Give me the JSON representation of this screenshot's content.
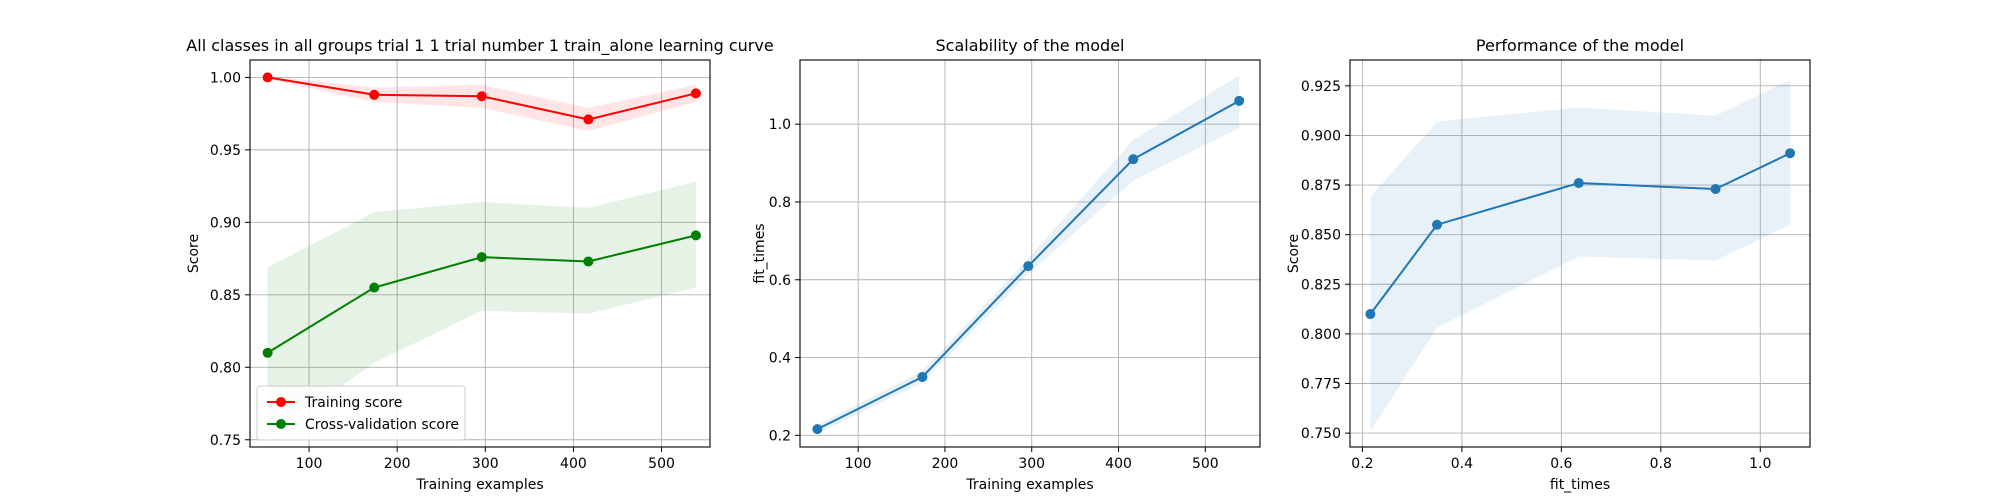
{
  "chart_data": [
    {
      "type": "line",
      "title": "All classes in all groups trial 1 1 trial number 1 train_alone learning curve",
      "xlabel": "Training examples",
      "ylabel": "Score",
      "xlim": [
        33,
        555
      ],
      "ylim": [
        0.745,
        1.012
      ],
      "xticks": [
        100,
        200,
        300,
        400,
        500
      ],
      "xtick_labels": [
        "100",
        "200",
        "300",
        "400",
        "500"
      ],
      "yticks": [
        0.75,
        0.8,
        0.85,
        0.9,
        0.95,
        1.0
      ],
      "ytick_labels": [
        "0.75",
        "0.80",
        "0.85",
        "0.90",
        "0.95",
        "1.00"
      ],
      "grid": true,
      "legend_position": "lower-left",
      "x": [
        53,
        174,
        296,
        417,
        539
      ],
      "series": [
        {
          "name": "Training score",
          "color": "#ff0000",
          "band_color": "#ff0000",
          "values": [
            1.0,
            0.988,
            0.987,
            0.971,
            0.989
          ],
          "lower": [
            0.999,
            0.983,
            0.979,
            0.963,
            0.983
          ],
          "upper": [
            1.001,
            0.993,
            0.995,
            0.979,
            0.995
          ]
        },
        {
          "name": "Cross-validation score",
          "color": "#008000",
          "band_color": "#008000",
          "values": [
            0.81,
            0.855,
            0.876,
            0.873,
            0.891
          ],
          "lower": [
            0.751,
            0.803,
            0.839,
            0.837,
            0.855
          ],
          "upper": [
            0.869,
            0.907,
            0.914,
            0.91,
            0.928
          ]
        }
      ]
    },
    {
      "type": "line",
      "title": "Scalability of the model",
      "xlabel": "Training examples",
      "ylabel": "fit_times",
      "xlim": [
        33,
        563
      ],
      "ylim": [
        0.17,
        1.165
      ],
      "xticks": [
        100,
        200,
        300,
        400,
        500
      ],
      "xtick_labels": [
        "100",
        "200",
        "300",
        "400",
        "500"
      ],
      "yticks": [
        0.2,
        0.4,
        0.6,
        0.8,
        1.0
      ],
      "ytick_labels": [
        "0.2",
        "0.4",
        "0.6",
        "0.8",
        "1.0"
      ],
      "grid": true,
      "x": [
        53,
        174,
        296,
        417,
        539
      ],
      "series": [
        {
          "color": "#1f77b4",
          "band_color": "#1f77b4",
          "values": [
            0.216,
            0.35,
            0.635,
            0.91,
            1.06
          ],
          "lower": [
            0.205,
            0.335,
            0.615,
            0.855,
            0.99
          ],
          "upper": [
            0.227,
            0.365,
            0.655,
            0.96,
            1.125
          ]
        }
      ]
    },
    {
      "type": "line",
      "title": "Performance of the model",
      "xlabel": "fit_times",
      "ylabel": "Score",
      "xlim": [
        0.175,
        1.1
      ],
      "ylim": [
        0.743,
        0.938
      ],
      "xticks": [
        0.2,
        0.4,
        0.6,
        0.8,
        1.0
      ],
      "xtick_labels": [
        "0.2",
        "0.4",
        "0.6",
        "0.8",
        "1.0"
      ],
      "yticks": [
        0.75,
        0.775,
        0.8,
        0.825,
        0.85,
        0.875,
        0.9,
        0.925
      ],
      "ytick_labels": [
        "0.750",
        "0.775",
        "0.800",
        "0.825",
        "0.850",
        "0.875",
        "0.900",
        "0.925"
      ],
      "grid": true,
      "x": [
        0.216,
        0.35,
        0.635,
        0.91,
        1.06
      ],
      "series": [
        {
          "color": "#1f77b4",
          "band_color": "#1f77b4",
          "values": [
            0.81,
            0.855,
            0.876,
            0.873,
            0.891
          ],
          "lower": [
            0.751,
            0.803,
            0.839,
            0.837,
            0.855
          ],
          "upper": [
            0.869,
            0.907,
            0.914,
            0.91,
            0.928
          ]
        }
      ]
    }
  ]
}
